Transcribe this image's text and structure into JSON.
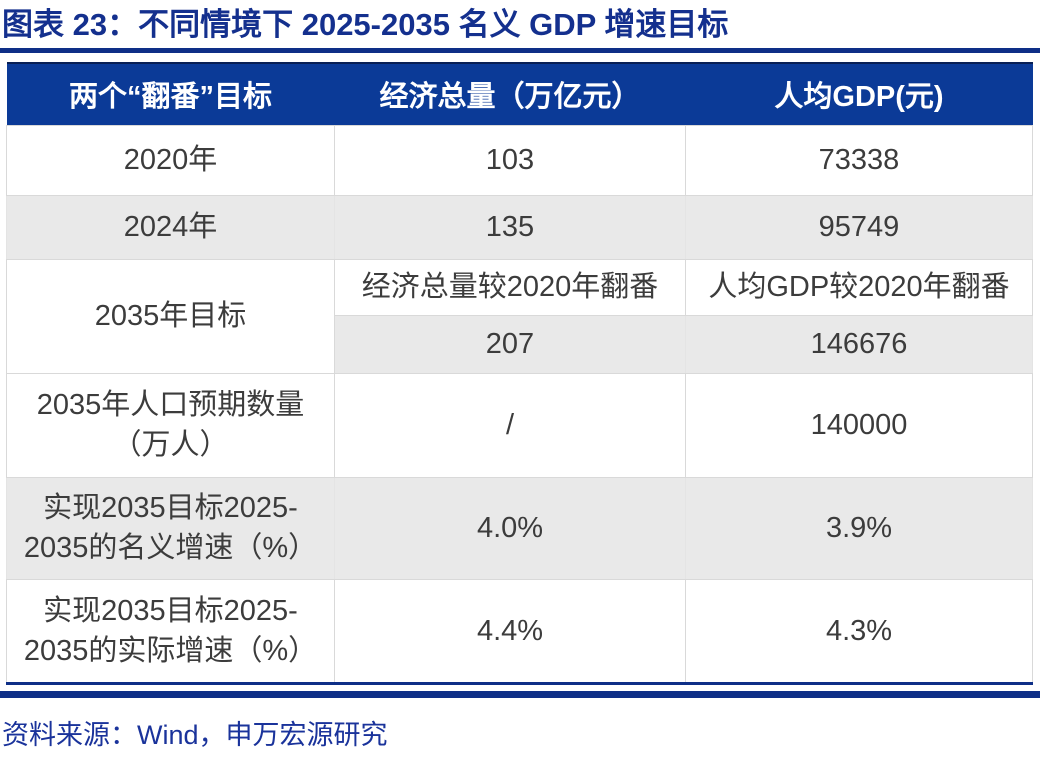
{
  "title": "图表 23：不同情境下 2025-2035 名义 GDP 增速目标",
  "source": "资料来源：Wind，申万宏源研究",
  "colors": {
    "header_navy": "#0B3A97",
    "rule_navy": "#0E2F87",
    "title_navy": "#14308E",
    "row_gray": "#E9E9E9",
    "cell_text": "#3C3C3C",
    "border_gray": "#D9D9D9"
  },
  "table": {
    "headers": [
      "两个“翻番”目标",
      "经济总量（万亿元）",
      "人均GDP(元)"
    ],
    "rows": [
      {
        "label": "2020年",
        "values": [
          "103",
          "73338"
        ]
      },
      {
        "label": "2024年",
        "values": [
          "135",
          "95749"
        ]
      },
      {
        "label": "2035年目标",
        "sub1": [
          "经济总量较2020年翻番",
          "人均GDP较2020年翻番"
        ],
        "sub2": [
          "207",
          "146676"
        ]
      },
      {
        "label": "2035年人口预期数量\n（万人）",
        "values": [
          "/",
          "140000"
        ]
      },
      {
        "label": "实现2035目标2025-\n2035的名义增速（%）",
        "values": [
          "4.0%",
          "3.9%"
        ]
      },
      {
        "label": "实现2035目标2025-\n2035的实际增速（%）",
        "values": [
          "4.4%",
          "4.3%"
        ]
      }
    ]
  },
  "chart_data": {
    "type": "table",
    "title": "图表 23：不同情境下 2025-2035 名义 GDP 增速目标",
    "columns": [
      "两个“翻番”目标",
      "经济总量（万亿元）",
      "人均GDP(元)"
    ],
    "rows": [
      [
        "2020年",
        "103",
        "73338"
      ],
      [
        "2024年",
        "135",
        "95749"
      ],
      [
        "2035年目标",
        "经济总量较2020年翻番",
        "人均GDP较2020年翻番"
      ],
      [
        "2035年目标",
        "207",
        "146676"
      ],
      [
        "2035年人口预期数量（万人）",
        "/",
        "140000"
      ],
      [
        "实现2035目标2025-2035的名义增速（%）",
        "4.0%",
        "3.9%"
      ],
      [
        "实现2035目标2025-2035的实际增速（%）",
        "4.4%",
        "4.3%"
      ]
    ],
    "source": "资料来源：Wind，申万宏源研究",
    "notes": "2035年目标 cell is merged across the two sub-rows (翻番 statement row and numeric target row)."
  }
}
